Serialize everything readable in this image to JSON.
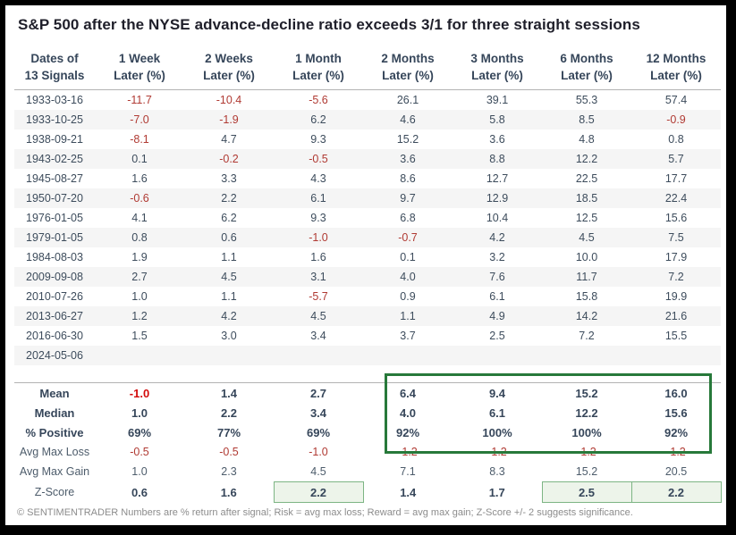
{
  "chart_data": {
    "type": "table",
    "title": "S&P 500 after the NYSE advance-decline ratio exceeds 3/1 for three straight sessions",
    "column_headers": [
      [
        "Dates of",
        "13 Signals"
      ],
      [
        "1 Week",
        "Later (%)"
      ],
      [
        "2 Weeks",
        "Later (%)"
      ],
      [
        "1 Month",
        "Later (%)"
      ],
      [
        "2 Months",
        "Later (%)"
      ],
      [
        "3 Months",
        "Later (%)"
      ],
      [
        "6 Months",
        "Later (%)"
      ],
      [
        "12 Months",
        "Later (%)"
      ]
    ],
    "rows": [
      [
        "1933-03-16",
        "-11.7",
        "-10.4",
        "-5.6",
        "26.1",
        "39.1",
        "55.3",
        "57.4"
      ],
      [
        "1933-10-25",
        "-7.0",
        "-1.9",
        "6.2",
        "4.6",
        "5.8",
        "8.5",
        "-0.9"
      ],
      [
        "1938-09-21",
        "-8.1",
        "4.7",
        "9.3",
        "15.2",
        "3.6",
        "4.8",
        "0.8"
      ],
      [
        "1943-02-25",
        "0.1",
        "-0.2",
        "-0.5",
        "3.6",
        "8.8",
        "12.2",
        "5.7"
      ],
      [
        "1945-08-27",
        "1.6",
        "3.3",
        "4.3",
        "8.6",
        "12.7",
        "22.5",
        "17.7"
      ],
      [
        "1950-07-20",
        "-0.6",
        "2.2",
        "6.1",
        "9.7",
        "12.9",
        "18.5",
        "22.4"
      ],
      [
        "1976-01-05",
        "4.1",
        "6.2",
        "9.3",
        "6.8",
        "10.4",
        "12.5",
        "15.6"
      ],
      [
        "1979-01-05",
        "0.8",
        "0.6",
        "-1.0",
        "-0.7",
        "4.2",
        "4.5",
        "7.5"
      ],
      [
        "1984-08-03",
        "1.9",
        "1.1",
        "1.6",
        "0.1",
        "3.2",
        "10.0",
        "17.9"
      ],
      [
        "2009-09-08",
        "2.7",
        "4.5",
        "3.1",
        "4.0",
        "7.6",
        "11.7",
        "7.2"
      ],
      [
        "2010-07-26",
        "1.0",
        "1.1",
        "-5.7",
        "0.9",
        "6.1",
        "15.8",
        "19.9"
      ],
      [
        "2013-06-27",
        "1.2",
        "4.2",
        "4.5",
        "1.1",
        "4.9",
        "14.2",
        "21.6"
      ],
      [
        "2016-06-30",
        "1.5",
        "3.0",
        "3.4",
        "3.7",
        "2.5",
        "7.2",
        "15.5"
      ],
      [
        "2024-05-06",
        "",
        "",
        "",
        "",
        "",
        "",
        ""
      ]
    ],
    "summary_rows": [
      {
        "label": "Mean",
        "values": [
          "-1.0",
          "1.4",
          "2.7",
          "6.4",
          "9.4",
          "15.2",
          "16.0"
        ],
        "weight": "bold"
      },
      {
        "label": "Median",
        "values": [
          "1.0",
          "2.2",
          "3.4",
          "4.0",
          "6.1",
          "12.2",
          "15.6"
        ],
        "weight": "bold"
      },
      {
        "label": "% Positive",
        "values": [
          "69%",
          "77%",
          "69%",
          "92%",
          "100%",
          "100%",
          "92%"
        ],
        "weight": "bold"
      },
      {
        "label": "Avg Max Loss",
        "values": [
          "-0.5",
          "-0.5",
          "-1.0",
          "-1.2",
          "-1.2",
          "-1.2",
          "-1.2"
        ],
        "weight": "normal"
      },
      {
        "label": "Avg Max Gain",
        "values": [
          "1.0",
          "2.3",
          "4.5",
          "7.1",
          "8.3",
          "15.2",
          "20.5"
        ],
        "weight": "normal"
      },
      {
        "label": "Z-Score",
        "values": [
          "0.6",
          "1.6",
          "2.2",
          "1.4",
          "1.7",
          "2.5",
          "2.2"
        ],
        "weight": "zscore"
      }
    ],
    "annotations": {
      "green_box_columns": [
        "2 Months",
        "3 Months",
        "6 Months",
        "12 Months"
      ],
      "green_box_rows": [
        "Mean",
        "Median",
        "% Positive"
      ],
      "zscore_highlight_columns": [
        "1 Month",
        "6 Months",
        "12 Months"
      ],
      "zscore_highlight_value_indices": [
        2,
        5,
        6
      ]
    },
    "footnote": "© SENTIMENTRADER  Numbers are % return after signal; Risk = avg max loss; Reward = avg max gain; Z-Score +/- 2 suggests significance.",
    "layout_hints": {
      "striped_rows": "even",
      "grid": "off"
    }
  },
  "colors": {
    "text_navy": "#36465a",
    "negative_red": "#b03a33",
    "mean_negative_red": "#d30b0b",
    "row_stripe": "#f5f5f5",
    "rule_gray": "#b3b3b3",
    "significance_box_green": "#27793a",
    "zscore_cell_fill": "#edf4ea",
    "zscore_cell_border": "#7db584",
    "frame_border": "#000000"
  }
}
